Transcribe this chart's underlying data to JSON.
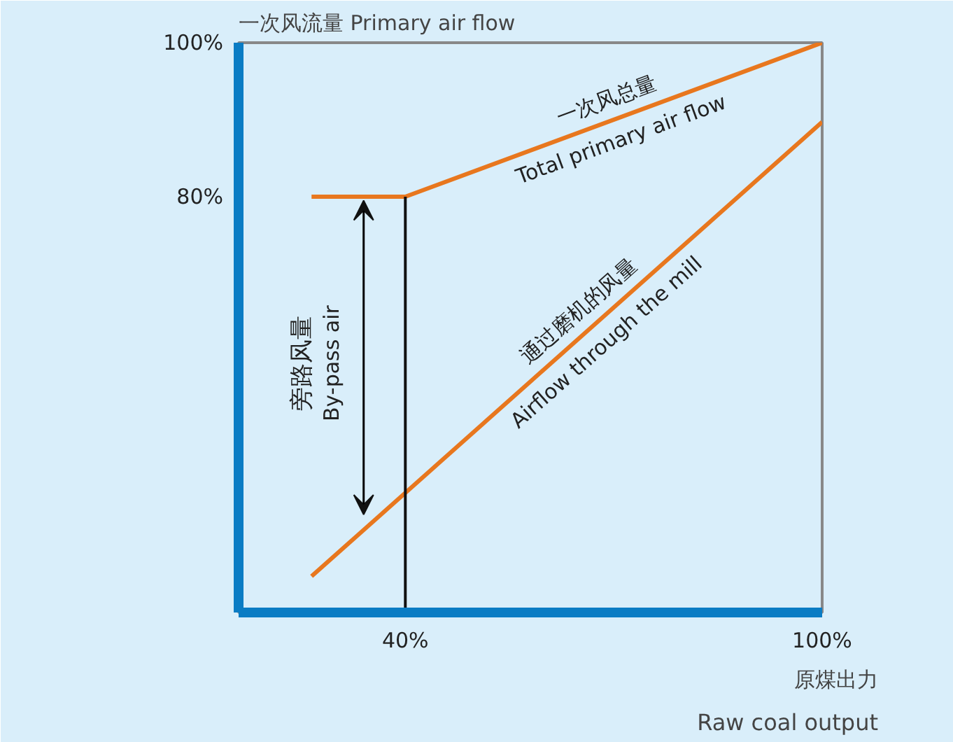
{
  "chart_data": {
    "type": "line",
    "xlabel": "原煤出力\nRaw coal output",
    "ylabel": "一次风流量 Primary air flow",
    "xlim": [
      16,
      100
    ],
    "ylim": [
      26,
      100
    ],
    "xticks": [
      {
        "value": 40,
        "label": "40%"
      },
      {
        "value": 100,
        "label": "100%"
      }
    ],
    "yticks": [
      {
        "value": 80,
        "label": "80%"
      },
      {
        "value": 100,
        "label": "100%"
      }
    ],
    "grid": false,
    "series": [
      {
        "name": "一次风总量\nTotal primary air flow",
        "color": "#e8771e",
        "x": [
          26.5,
          40,
          100
        ],
        "values": [
          80,
          80,
          100
        ]
      },
      {
        "name": "通过磨机的风量\nAirflow through the mill",
        "color": "#e8771e",
        "x": [
          26.5,
          100
        ],
        "values": [
          30.7,
          89.7
        ]
      }
    ],
    "ref_lines": [
      {
        "axis": "x",
        "value": 40,
        "color": "#111111"
      }
    ],
    "annotations": [
      {
        "text": "旁路风量\nBy-pass air",
        "x": 34,
        "y": 80
      }
    ]
  }
}
